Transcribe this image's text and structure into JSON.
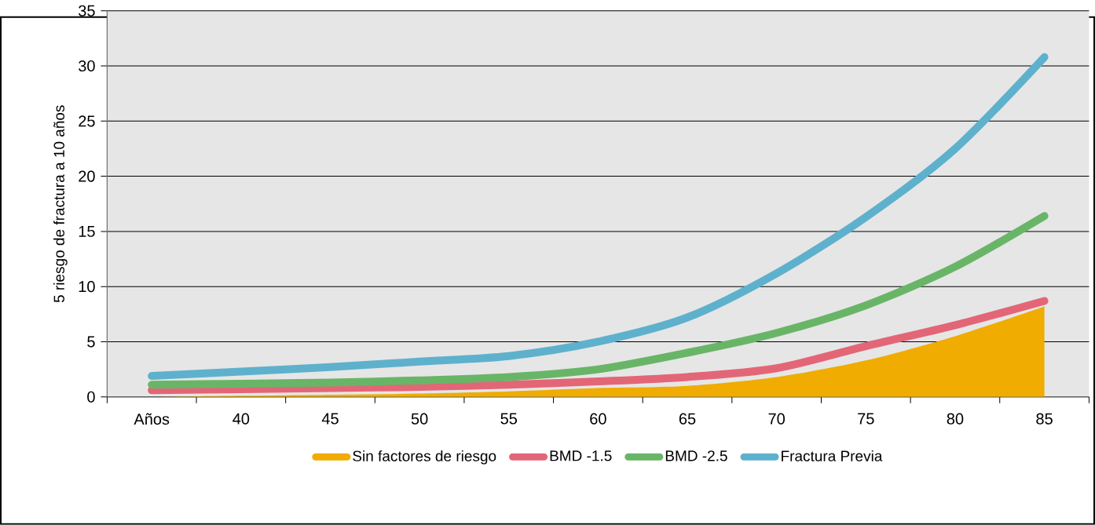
{
  "chart_data": {
    "type": "line",
    "ylabel": "5 riesgo de fractura a 10 años",
    "categories": [
      "Años",
      "40",
      "45",
      "50",
      "55",
      "60",
      "65",
      "70",
      "75",
      "80",
      "85"
    ],
    "series": [
      {
        "name": "Sin factores de riesgo",
        "type": "area",
        "color": "#f0ac00",
        "values": [
          0,
          0.1,
          0.2,
          0.3,
          0.5,
          0.8,
          1.0,
          1.8,
          3.3,
          5.5,
          8.2
        ]
      },
      {
        "name": "BMD -1.5",
        "color": "#e36677",
        "values": [
          0.6,
          0.7,
          0.8,
          0.9,
          1.1,
          1.4,
          1.8,
          2.6,
          4.6,
          6.5,
          8.7
        ]
      },
      {
        "name": "BMD -2.5",
        "color": "#69b567",
        "values": [
          1.1,
          1.2,
          1.3,
          1.5,
          1.8,
          2.5,
          4.0,
          5.8,
          8.3,
          11.8,
          16.4
        ]
      },
      {
        "name": "Fractura Previa",
        "color": "#5eb1cc",
        "values": [
          1.9,
          2.3,
          2.7,
          3.2,
          3.7,
          5.0,
          7.2,
          11.2,
          16.3,
          22.5,
          30.8
        ]
      }
    ],
    "ylim": [
      0,
      35
    ],
    "yticks": [
      0,
      5,
      10,
      15,
      20,
      25,
      30,
      35
    ],
    "grid": "y",
    "legend": "bottom"
  }
}
